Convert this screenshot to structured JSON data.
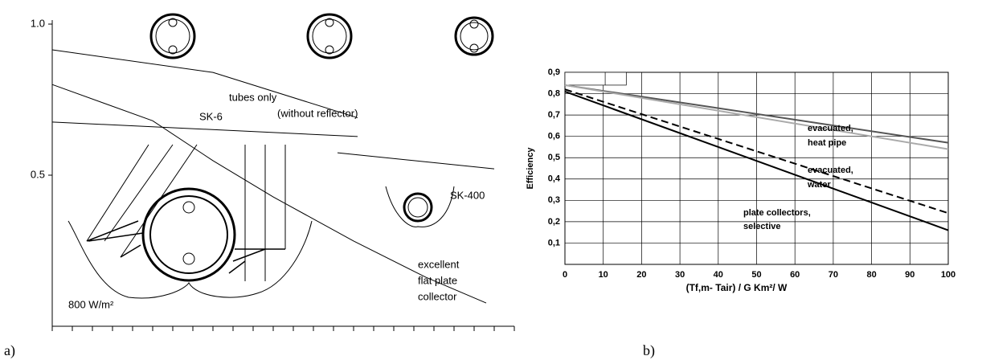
{
  "chart_data": [
    {
      "type": "line",
      "label": "a)",
      "ylim": [
        0,
        1
      ],
      "yticks": [
        {
          "value": 1,
          "label": "1.0"
        },
        0.5
      ],
      "xlim": [
        0,
        23
      ],
      "xticks": [
        0,
        1,
        2,
        3,
        4,
        5,
        6,
        7,
        8,
        9,
        10,
        11,
        12,
        13,
        14,
        15,
        16,
        17,
        18,
        19,
        20,
        21,
        22,
        23
      ],
      "series": [
        {
          "color": "#000000",
          "x": [
            0,
            8,
            15.2
          ],
          "values": [
            0.915,
            0.84,
            0.69
          ]
        },
        {
          "color": "#000000",
          "x": [
            0,
            15.2
          ],
          "values": [
            0.676,
            0.628
          ]
        },
        {
          "color": "#000000",
          "x": [
            14.2,
            22
          ],
          "values": [
            0.574,
            0.521
          ]
        },
        {
          "color": "#000000",
          "x": [
            0,
            5,
            8,
            11,
            15,
            18.6,
            21.6
          ],
          "values": [
            0.8,
            0.68,
            0.548,
            0.428,
            0.282,
            0.162,
            0.077
          ]
        }
      ],
      "annotations": [
        [
          "tubes only",
          "(without reflector)"
        ],
        [
          "SK-6"
        ],
        [
          "SK-400"
        ],
        [
          "excellent",
          "flat plate",
          "collector"
        ],
        [
          "800 W/m²"
        ]
      ]
    },
    {
      "type": "line",
      "label": "b)",
      "ylabel": "Efficiency",
      "xlabel": "(Tf,m- Tair) / G Km²/ W",
      "xlim": [
        0,
        100
      ],
      "xticks": [
        0,
        10,
        20,
        30,
        40,
        50,
        60,
        70,
        80,
        90,
        100
      ],
      "ylim": [
        0,
        0.9
      ],
      "yticks": [
        {
          "value": 0.1,
          "label": "0,1"
        },
        {
          "value": 0.2,
          "label": "0,2"
        },
        {
          "value": 0.3,
          "label": "0,3"
        },
        {
          "value": 0.4,
          "label": "0,4"
        },
        {
          "value": 0.5,
          "label": "0,5"
        },
        {
          "value": 0.6,
          "label": "0,6"
        },
        {
          "value": 0.7,
          "label": "0,7"
        },
        {
          "value": 0.8,
          "label": "0,8"
        },
        {
          "value": 0.9,
          "label": "0,9"
        }
      ],
      "grid": true,
      "series": [
        {
          "color": "#555555",
          "x": [
            0,
            100
          ],
          "values": [
            0.84,
            0.57
          ]
        },
        {
          "color": "#aaaaaa",
          "x": [
            0,
            100
          ],
          "values": [
            0.84,
            0.54
          ]
        },
        {
          "color": "#000000",
          "dashed": true,
          "x": [
            0,
            100
          ],
          "values": [
            0.82,
            0.24
          ]
        },
        {
          "color": "#000000",
          "x": [
            0,
            100
          ],
          "values": [
            0.81,
            0.16
          ]
        }
      ],
      "annotations": [
        [
          "evacuated,",
          "heat pipe"
        ],
        [
          "evacuated,",
          "water"
        ],
        [
          "plate collectors,",
          "selective"
        ]
      ]
    }
  ]
}
